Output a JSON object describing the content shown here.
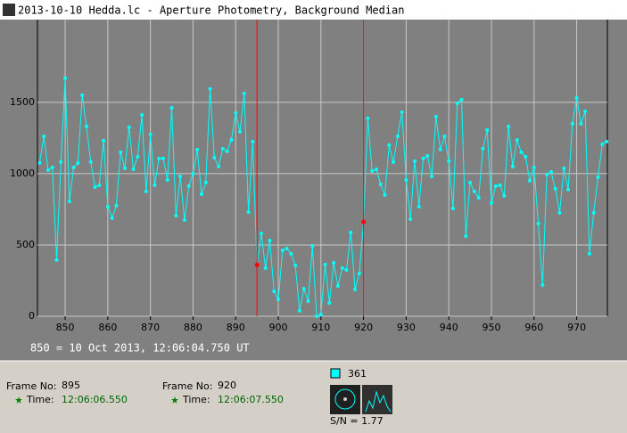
{
  "window_title": "2013-10-10 Hedda.lc - Aperture Photometry, Background Median",
  "chart_data": {
    "type": "line",
    "x": [
      844,
      845,
      846,
      847,
      848,
      849,
      850,
      851,
      852,
      853,
      854,
      855,
      856,
      857,
      858,
      859,
      860,
      861,
      862,
      863,
      864,
      865,
      866,
      867,
      868,
      869,
      870,
      871,
      872,
      873,
      874,
      875,
      876,
      877,
      878,
      879,
      880,
      881,
      882,
      883,
      884,
      885,
      886,
      887,
      888,
      889,
      890,
      891,
      892,
      893,
      894,
      895,
      896,
      897,
      898,
      899,
      900,
      901,
      902,
      903,
      904,
      905,
      906,
      907,
      908,
      909,
      910,
      911,
      912,
      913,
      914,
      915,
      916,
      917,
      918,
      919,
      920,
      921,
      922,
      923,
      924,
      925,
      926,
      927,
      928,
      929,
      930,
      931,
      932,
      933,
      934,
      935,
      936,
      937,
      938,
      939,
      940,
      941,
      942,
      943,
      944,
      945,
      946,
      947,
      948,
      949,
      950,
      951,
      952,
      953,
      954,
      955,
      956,
      957,
      958,
      959,
      960,
      961,
      962,
      963,
      964,
      965,
      966,
      967,
      968,
      969,
      970,
      971,
      972,
      973,
      974,
      975,
      976,
      977
    ],
    "series": [
      {
        "name": "Photometry",
        "color": "#00ffff",
        "values": [
          1075,
          1262,
          1025,
          1044,
          394,
          1081,
          1669,
          806,
          1044,
          1075,
          1550,
          1331,
          1081,
          906,
          919,
          1231,
          769,
          688,
          775,
          1150,
          1038,
          1325,
          1031,
          1119,
          1412,
          875,
          1275,
          919,
          1106,
          1106,
          956,
          1462,
          706,
          981,
          675,
          913,
          1000,
          1169,
          856,
          938,
          1594,
          1112,
          1050,
          1175,
          1156,
          1237,
          1425,
          1294,
          1562,
          731,
          1225,
          360,
          581,
          338,
          531,
          175,
          119,
          462,
          475,
          438,
          356,
          38,
          194,
          106,
          494,
          0,
          12,
          362,
          94,
          375,
          212,
          338,
          325,
          588,
          188,
          300,
          662,
          1388,
          1019,
          1031,
          925,
          850,
          1200,
          1081,
          1262,
          1431,
          956,
          681,
          1088,
          769,
          1106,
          1125,
          981,
          1400,
          1169,
          1262,
          1088,
          756,
          1494,
          1519,
          562,
          938,
          875,
          831,
          1175,
          1306,
          794,
          913,
          919,
          844,
          1331,
          1050,
          1237,
          1150,
          1119,
          950,
          1044,
          650,
          219,
          994,
          1012,
          894,
          725,
          1038,
          888,
          1350,
          1531,
          1350,
          1437,
          438,
          725,
          975,
          1206,
          1225
        ]
      }
    ],
    "cursors": [
      {
        "x": 895,
        "y": 360,
        "color": "#ff0000"
      },
      {
        "x": 920,
        "y": 662,
        "color": "#ff0000"
      }
    ],
    "xlim": [
      843.5,
      977.2
    ],
    "xticks": [
      850,
      860,
      870,
      880,
      890,
      900,
      910,
      920,
      930,
      940,
      950,
      960,
      970
    ],
    "ylim": [
      0,
      2080
    ],
    "yticks": [
      0,
      500,
      1000,
      1500
    ],
    "grid": true,
    "footnote": "850 = 10 Oct 2013, 12:06:04.750 UT"
  },
  "cursor_panels": [
    {
      "frame_label": "Frame No:",
      "frame": 895,
      "time_label": "Time:",
      "time": "12:06:06.550"
    },
    {
      "frame_label": "Frame No:",
      "frame": 920,
      "time_label": "Time:",
      "time": "12:06:07.550"
    }
  ],
  "star": {
    "id": "361",
    "sn": "S/N = 1.77"
  }
}
